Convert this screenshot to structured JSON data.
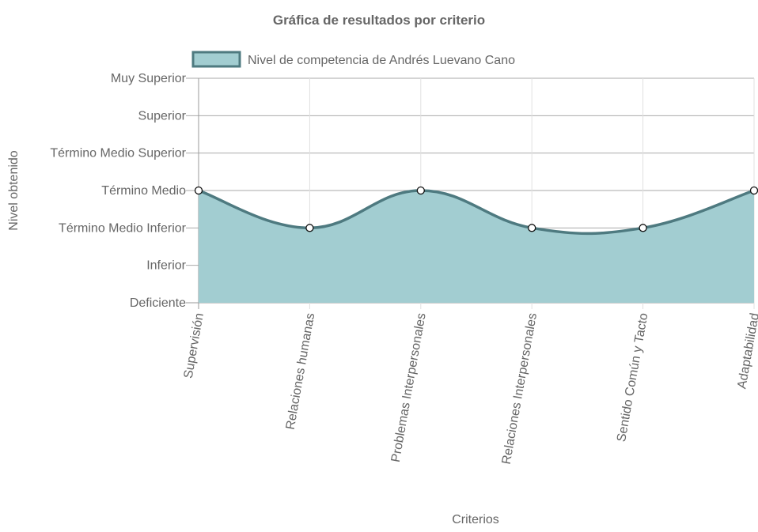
{
  "chart_data": {
    "type": "area",
    "title": "Gráfica de resultados por criterio",
    "xlabel": "Criterios",
    "ylabel": "Nivel obtenido",
    "categories": [
      "Supervisión",
      "Relaciones humanas",
      "Problemas Interpersonales",
      "Relaciones Interpersonales",
      "Sentido Común y Tacto",
      "Adaptabilidad"
    ],
    "y_levels": [
      "Deficiente",
      "Inferior",
      "Término Medio Inferior",
      "Término Medio",
      "Término Medio Superior",
      "Superior",
      "Muy Superior"
    ],
    "ylim": [
      0,
      6
    ],
    "series": [
      {
        "name": "Nivel de competencia de Andrés Luevano Cano",
        "values": [
          3,
          2,
          3,
          2,
          2,
          3
        ],
        "values_labels": [
          "Término Medio",
          "Término Medio Inferior",
          "Término Medio",
          "Término Medio Inferior",
          "Término Medio Inferior",
          "Término Medio"
        ],
        "fill_color": "#a2cdd1",
        "line_color": "#4e7a80"
      }
    ],
    "grid": true,
    "legend_position": "top"
  }
}
